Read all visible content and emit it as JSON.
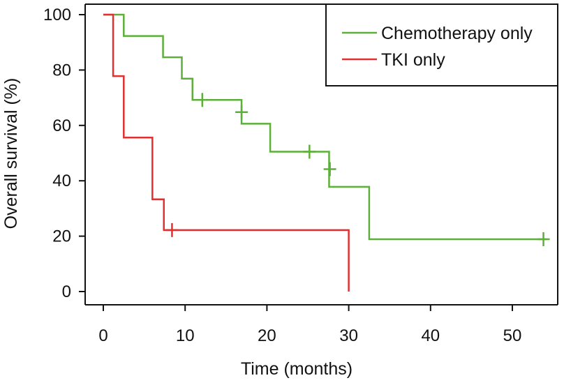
{
  "chart_data": {
    "type": "line",
    "subtype": "kaplan-meier-step",
    "title": "",
    "xlabel": "Time (months)",
    "ylabel": "Overall survival (%)",
    "xlim": [
      0,
      55
    ],
    "ylim": [
      0,
      100
    ],
    "xticks": [
      0,
      10,
      20,
      30,
      40,
      50
    ],
    "yticks": [
      0,
      20,
      40,
      60,
      80,
      100
    ],
    "grid": false,
    "legend_position": "top-right",
    "series": [
      {
        "name": "Chemotherapy only",
        "color": "#5cb03a",
        "steps": [
          {
            "x": 0,
            "y": 100
          },
          {
            "x": 2.5,
            "y": 92.3
          },
          {
            "x": 7.3,
            "y": 84.6
          },
          {
            "x": 9.6,
            "y": 76.9
          },
          {
            "x": 10.9,
            "y": 69.2
          },
          {
            "x": 16.9,
            "y": 60.6
          },
          {
            "x": 20.4,
            "y": 50.5
          },
          {
            "x": 27.6,
            "y": 37.8
          },
          {
            "x": 32.5,
            "y": 18.9
          }
        ],
        "end_x": 54.2,
        "censored": [
          {
            "x": 12.1,
            "y": 69.2
          },
          {
            "x": 16.9,
            "y": 64.8
          },
          {
            "x": 25.2,
            "y": 50.5
          },
          {
            "x": 27.7,
            "y": 44.2
          },
          {
            "x": 53.8,
            "y": 18.9
          }
        ]
      },
      {
        "name": "TKI only",
        "color": "#e03030",
        "steps": [
          {
            "x": 0,
            "y": 100
          },
          {
            "x": 1.2,
            "y": 77.8
          },
          {
            "x": 2.5,
            "y": 55.6
          },
          {
            "x": 6.0,
            "y": 33.3
          },
          {
            "x": 7.4,
            "y": 22.2
          },
          {
            "x": 30.0,
            "y": 0
          }
        ],
        "end_x": 30.0,
        "censored": [
          {
            "x": 8.4,
            "y": 22.2
          }
        ]
      }
    ]
  }
}
